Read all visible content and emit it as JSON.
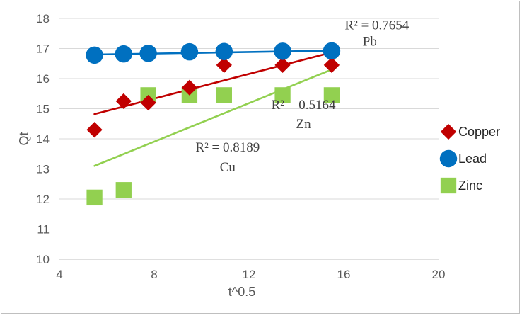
{
  "chart_data": {
    "type": "scatter",
    "xlabel": "t^0.5",
    "ylabel": "Qt",
    "xlim": [
      4,
      20
    ],
    "ylim": [
      10,
      18
    ],
    "xticks": [
      4,
      8,
      12,
      16,
      20
    ],
    "yticks": [
      10,
      11,
      12,
      13,
      14,
      15,
      16,
      17,
      18
    ],
    "grid": "horizontal",
    "legend_position": "right",
    "series": [
      {
        "name": "Copper",
        "marker": "diamond",
        "color": "#c00000",
        "x": [
          5.48,
          6.71,
          7.75,
          9.49,
          10.95,
          13.42,
          15.49
        ],
        "y": [
          14.3,
          15.25,
          15.2,
          15.7,
          16.45,
          16.45,
          16.45
        ],
        "trendline": {
          "x": [
            5.48,
            15.49
          ],
          "y": [
            14.82,
            16.87
          ],
          "color": "#c00000"
        }
      },
      {
        "name": "Lead",
        "marker": "circle",
        "color": "#0070c0",
        "x": [
          5.48,
          6.71,
          7.75,
          9.49,
          10.95,
          13.42,
          15.49
        ],
        "y": [
          16.78,
          16.82,
          16.84,
          16.89,
          16.9,
          16.91,
          16.92
        ],
        "trendline": {
          "x": [
            5.48,
            15.49
          ],
          "y": [
            16.8,
            16.93
          ],
          "color": "#0070c0"
        }
      },
      {
        "name": "Zinc",
        "marker": "square",
        "color": "#92d050",
        "x": [
          5.48,
          6.71,
          7.75,
          9.49,
          10.95,
          13.42,
          15.49
        ],
        "y": [
          12.05,
          12.3,
          15.45,
          15.45,
          15.45,
          15.45,
          15.45
        ],
        "trendline": {
          "x": [
            5.48,
            15.49
          ],
          "y": [
            13.1,
            16.3
          ],
          "color": "#92d050"
        }
      }
    ],
    "annotations": [
      {
        "text": "R² = 0.7654",
        "x": 17.4,
        "y": 17.63
      },
      {
        "text": "Pb",
        "x": 17.1,
        "y": 17.1
      },
      {
        "text": "R² = 0.5164",
        "x": 14.3,
        "y": 14.99
      },
      {
        "text": "Zn",
        "x": 14.3,
        "y": 14.35
      },
      {
        "text": "R² = 0.8189",
        "x": 11.1,
        "y": 13.58
      },
      {
        "text": "Cu",
        "x": 11.1,
        "y": 12.92
      }
    ]
  }
}
